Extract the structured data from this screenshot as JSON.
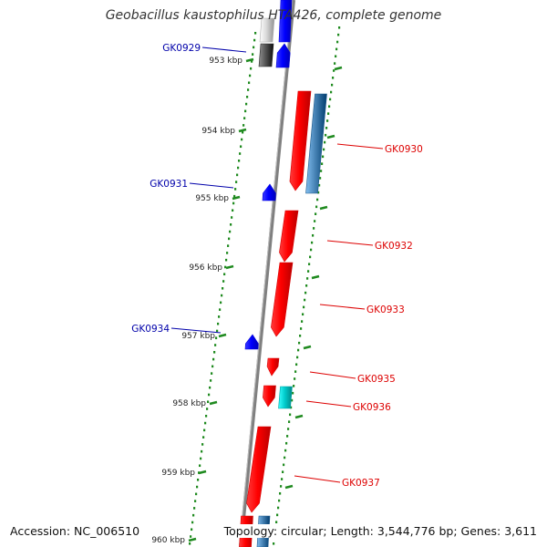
{
  "title": "Geobacillus kaustophilus HTA426, complete genome",
  "accession": "Accession: NC_006510",
  "topology": "Topology: circular; Length: 3,544,776 bp; Genes: 3,611",
  "colors": {
    "axis": "#808080",
    "ticks": "#1f8a1f",
    "tick_labels": "#222222",
    "forward": "#ff0000",
    "reverse": "#0000ff",
    "steel": "#4682b4",
    "cyan": "#00cccc",
    "gray": "#555555",
    "label_forward": "#dd0000",
    "label_reverse": "#0000aa"
  },
  "scale_labels": [
    "953 kbp",
    "954 kbp",
    "955 kbp",
    "956 kbp",
    "957 kbp",
    "958 kbp",
    "959 kbp",
    "960 kbp"
  ],
  "gene_labels": [
    {
      "text": "GK0929",
      "strand": "reverse"
    },
    {
      "text": "GK0930",
      "strand": "forward"
    },
    {
      "text": "GK0931",
      "strand": "reverse"
    },
    {
      "text": "GK0932",
      "strand": "forward"
    },
    {
      "text": "GK0933",
      "strand": "forward"
    },
    {
      "text": "GK0934",
      "strand": "reverse"
    },
    {
      "text": "GK0935",
      "strand": "forward"
    },
    {
      "text": "GK0936",
      "strand": "forward"
    },
    {
      "text": "GK0937",
      "strand": "forward"
    }
  ]
}
